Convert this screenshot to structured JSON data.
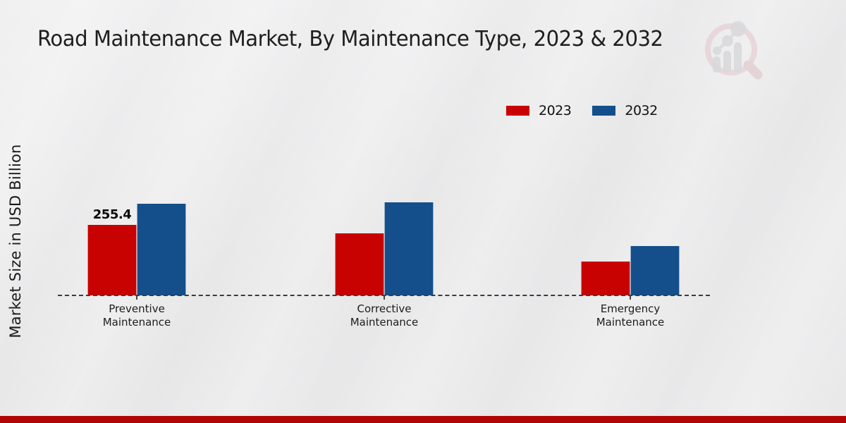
{
  "page": {
    "title": "Road Maintenance Market, By Maintenance Type, 2023 & 2032",
    "footer_color": "#b00606",
    "background_color": "#e9e9ea"
  },
  "chart_data": {
    "type": "bar",
    "title": "Road Maintenance Market, By Maintenance Type, 2023 & 2032",
    "xlabel": "",
    "ylabel": "Market Size in USD Billion",
    "categories": [
      "Preventive Maintenance",
      "Corrective Maintenance",
      "Emergency Maintenance"
    ],
    "series": [
      {
        "name": "2023",
        "color": "#c80101",
        "values": [
          255.4,
          225,
          123
        ]
      },
      {
        "name": "2032",
        "color": "#144f8b",
        "values": [
          332,
          337,
          179
        ]
      }
    ],
    "point_labels": [
      {
        "series": 0,
        "category": 0,
        "text": "255.4"
      }
    ],
    "ylim": [
      0,
      380
    ],
    "grid": false,
    "legend_position": "top-right",
    "x_axis_style": "dashed",
    "note_only_labeled_value": "255.4 (2023 Preventive Maintenance); other values estimated from bar heights"
  },
  "logo": {
    "icon": "magnifier-bar-chart-icon",
    "ring_color": "#e4c6cb",
    "bars_color": "#c8c9cd"
  }
}
